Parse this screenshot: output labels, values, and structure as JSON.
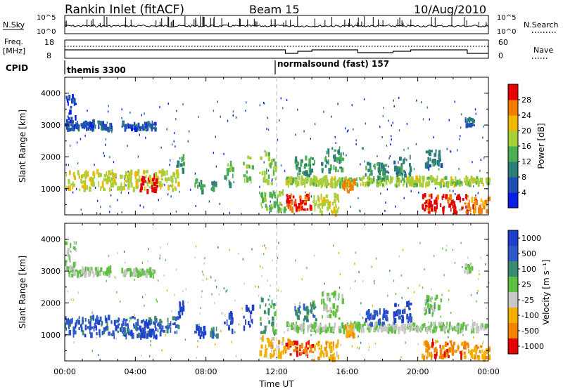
{
  "header": {
    "station": "Rankin Inlet (fitACF)",
    "beam": "Beam 15",
    "date": "10/Aug/2010"
  },
  "top_panels": {
    "nsky_label": "N.Sky",
    "nsky_ticks": [
      "10^5",
      "10^0"
    ],
    "nsearch_label": "N.Search",
    "freq_label_1": "Freq.",
    "freq_label_2": "[MHz]",
    "freq_ticks": [
      "18",
      "8"
    ],
    "nave_ticks": [
      "60",
      "0"
    ],
    "nave_label": "Nave",
    "cpid_label": "CPID",
    "cpid_segments": [
      "themis 3300",
      "normalsound (fast) 157"
    ]
  },
  "chart_data": [
    {
      "type": "heatmap",
      "title": "",
      "xlabel": "Time UT",
      "ylabel": "Slant Range [km]",
      "x_ticks": [
        "00:00",
        "04:00",
        "08:00",
        "12:00",
        "16:00",
        "20:00",
        "00:00"
      ],
      "xlim": [
        0,
        24
      ],
      "ylim": [
        180,
        4500
      ],
      "y_ticks": [
        1000,
        2000,
        3000,
        4000
      ],
      "colorbar": {
        "label": "Power [dB]",
        "ticks": [
          "4",
          "8",
          "12",
          "16",
          "20",
          "24",
          "28"
        ],
        "range": [
          0,
          30
        ],
        "colors": [
          "#0a1ee6",
          "#1e50b4",
          "#2d7d78",
          "#4bae55",
          "#a6cf3a",
          "#f0b800",
          "#f07c00",
          "#e60000"
        ]
      },
      "regions": [
        {
          "t0": 0.0,
          "t1": 2.6,
          "r0": 2850,
          "r1": 3100,
          "level": 0.2
        },
        {
          "t0": 0.0,
          "t1": 0.6,
          "r0": 3100,
          "r1": 3900,
          "level": 0.15
        },
        {
          "t0": 3.2,
          "t1": 5.1,
          "r0": 2850,
          "r1": 3050,
          "level": 0.2
        },
        {
          "t0": 0.0,
          "t1": 6.4,
          "r0": 950,
          "r1": 1550,
          "level": 0.6
        },
        {
          "t0": 4.2,
          "t1": 5.2,
          "r0": 900,
          "r1": 1400,
          "level": 0.95
        },
        {
          "t0": 6.3,
          "t1": 6.7,
          "r0": 1500,
          "r1": 2000,
          "level": 0.4
        },
        {
          "t0": 7.3,
          "t1": 7.9,
          "r0": 900,
          "r1": 1250,
          "level": 0.4
        },
        {
          "t0": 8.2,
          "t1": 8.6,
          "r0": 950,
          "r1": 1200,
          "level": 0.4
        },
        {
          "t0": 9.0,
          "t1": 9.5,
          "r0": 1100,
          "r1": 1800,
          "level": 0.45
        },
        {
          "t0": 10.1,
          "t1": 10.6,
          "r0": 1200,
          "r1": 2000,
          "level": 0.45
        },
        {
          "t0": 11.0,
          "t1": 11.9,
          "r0": 1000,
          "r1": 2100,
          "level": 0.55
        },
        {
          "t0": 11.0,
          "t1": 12.5,
          "r0": 300,
          "r1": 900,
          "level": 0.5
        },
        {
          "t0": 12.5,
          "t1": 14.0,
          "r0": 300,
          "r1": 800,
          "level": 0.92
        },
        {
          "t0": 13.0,
          "t1": 14.2,
          "r0": 1400,
          "r1": 2000,
          "level": 0.4
        },
        {
          "t0": 14.5,
          "t1": 15.7,
          "r0": 1500,
          "r1": 2300,
          "level": 0.4
        },
        {
          "t0": 14.0,
          "t1": 15.5,
          "r0": 200,
          "r1": 800,
          "level": 0.6
        },
        {
          "t0": 12.5,
          "t1": 24.0,
          "r0": 1100,
          "r1": 1350,
          "level": 0.55
        },
        {
          "t0": 15.7,
          "t1": 16.4,
          "r0": 900,
          "r1": 1300,
          "level": 0.8
        },
        {
          "t0": 17.0,
          "t1": 18.2,
          "r0": 1300,
          "r1": 1800,
          "level": 0.35
        },
        {
          "t0": 18.6,
          "t1": 19.6,
          "r0": 1400,
          "r1": 2000,
          "level": 0.3
        },
        {
          "t0": 20.3,
          "t1": 21.3,
          "r0": 1600,
          "r1": 2200,
          "level": 0.3
        },
        {
          "t0": 20.2,
          "t1": 22.8,
          "r0": 250,
          "r1": 800,
          "level": 0.93
        },
        {
          "t0": 22.8,
          "t1": 24.0,
          "r0": 250,
          "r1": 700,
          "level": 0.8
        },
        {
          "t0": 22.6,
          "t1": 23.2,
          "r0": 2950,
          "r1": 3200,
          "level": 0.25
        }
      ]
    },
    {
      "type": "heatmap",
      "title": "",
      "xlabel": "Time UT",
      "ylabel": "Slant Range [km]",
      "x_ticks": [
        "00:00",
        "04:00",
        "08:00",
        "12:00",
        "16:00",
        "20:00",
        "00:00"
      ],
      "xlim": [
        0,
        24
      ],
      "ylim": [
        180,
        4500
      ],
      "y_ticks": [
        1000,
        2000,
        3000,
        4000
      ],
      "colorbar": {
        "label": "Velocity [m s⁻¹]",
        "ticks": [
          "1000",
          "500",
          "100",
          "25",
          "-25",
          "-100",
          "-500",
          "-1000"
        ],
        "range": [
          -1000,
          1000
        ],
        "colors": [
          "#1e3ecc",
          "#2d58c8",
          "#3a8a72",
          "#5fc040",
          "#c8c8c8",
          "#f2b000",
          "#f28400",
          "#e60000"
        ]
      },
      "regions": [
        {
          "t0": 0.0,
          "t1": 2.6,
          "r0": 2850,
          "r1": 3100,
          "level": 0.5
        },
        {
          "t0": 0.0,
          "t1": 0.6,
          "r0": 3100,
          "r1": 3900,
          "level": 0.5
        },
        {
          "t0": 3.2,
          "t1": 5.1,
          "r0": 2850,
          "r1": 3050,
          "level": 0.5
        },
        {
          "t0": 0.0,
          "t1": 6.4,
          "r0": 950,
          "r1": 1550,
          "level": 0.2
        },
        {
          "t0": 4.2,
          "t1": 5.2,
          "r0": 900,
          "r1": 1400,
          "level": 0.05
        },
        {
          "t0": 6.3,
          "t1": 6.7,
          "r0": 1500,
          "r1": 2000,
          "level": 0.08
        },
        {
          "t0": 7.3,
          "t1": 7.9,
          "r0": 900,
          "r1": 1250,
          "level": 0.1
        },
        {
          "t0": 8.2,
          "t1": 8.6,
          "r0": 950,
          "r1": 1200,
          "level": 0.3
        },
        {
          "t0": 9.0,
          "t1": 9.5,
          "r0": 1100,
          "r1": 1800,
          "level": 0.08
        },
        {
          "t0": 10.1,
          "t1": 10.6,
          "r0": 1200,
          "r1": 2000,
          "level": 0.05
        },
        {
          "t0": 11.0,
          "t1": 11.9,
          "r0": 1000,
          "r1": 2100,
          "level": 0.35
        },
        {
          "t0": 11.0,
          "t1": 12.5,
          "r0": 300,
          "r1": 900,
          "level": 0.68
        },
        {
          "t0": 12.5,
          "t1": 14.0,
          "r0": 300,
          "r1": 800,
          "level": 0.85
        },
        {
          "t0": 13.0,
          "t1": 14.2,
          "r0": 1400,
          "r1": 2000,
          "level": 0.3
        },
        {
          "t0": 14.5,
          "t1": 15.7,
          "r0": 1500,
          "r1": 2300,
          "level": 0.5
        },
        {
          "t0": 14.0,
          "t1": 15.5,
          "r0": 200,
          "r1": 800,
          "level": 0.7
        },
        {
          "t0": 12.5,
          "t1": 24.0,
          "r0": 1100,
          "r1": 1350,
          "level": 0.5
        },
        {
          "t0": 15.7,
          "t1": 16.4,
          "r0": 900,
          "r1": 1300,
          "level": 0.7
        },
        {
          "t0": 17.0,
          "t1": 18.2,
          "r0": 1300,
          "r1": 1800,
          "level": 0.15
        },
        {
          "t0": 18.6,
          "t1": 19.6,
          "r0": 1400,
          "r1": 2000,
          "level": 0.1
        },
        {
          "t0": 20.3,
          "t1": 21.3,
          "r0": 1600,
          "r1": 2200,
          "level": 0.45
        },
        {
          "t0": 20.2,
          "t1": 22.8,
          "r0": 250,
          "r1": 800,
          "level": 0.82
        },
        {
          "t0": 22.8,
          "t1": 24.0,
          "r0": 250,
          "r1": 700,
          "level": 0.72
        },
        {
          "t0": 22.6,
          "t1": 23.2,
          "r0": 2950,
          "r1": 3200,
          "level": 0.5
        }
      ]
    }
  ]
}
